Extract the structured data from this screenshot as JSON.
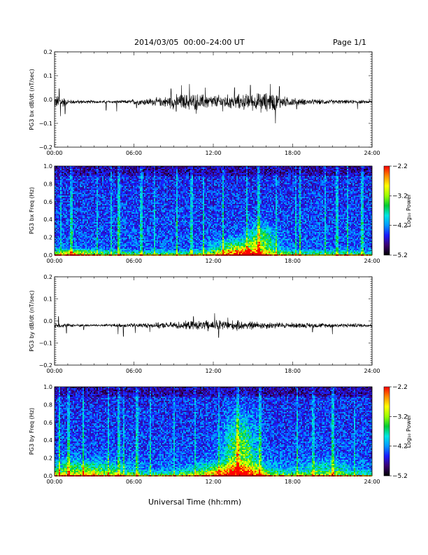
{
  "header": {
    "title": "2014/03/05  00:00–24:00 UT",
    "page": "Page 1/1"
  },
  "footer": {
    "xlabel": "Universal Time (hh:mm)"
  },
  "colorscale": {
    "colors": [
      "#000000",
      "#3b0070",
      "#1a1aff",
      "#0099ff",
      "#00e6e6",
      "#00cc33",
      "#99ff00",
      "#ffff00",
      "#ff8c00",
      "#ff0000"
    ]
  },
  "chart_data": [
    {
      "type": "line",
      "ylabel": "PG3 bx dB/dt (nT/sec)",
      "x_ticks": [
        "00:00",
        "06:00",
        "12:00",
        "18:00",
        "24:00"
      ],
      "xlim_hours": [
        0,
        24
      ],
      "y_ticks": [
        "0.2",
        "0.1",
        "0.0",
        "−0.1",
        "−0.2"
      ],
      "ylim": [
        -0.2,
        0.2
      ],
      "baseline": -0.01,
      "envelope": [
        {
          "x": 0,
          "amp": 0.025
        },
        {
          "x": 0.5,
          "amp": 0.03
        },
        {
          "x": 1,
          "amp": 0.01
        },
        {
          "x": 3,
          "amp": 0.006
        },
        {
          "x": 5.5,
          "amp": 0.007
        },
        {
          "x": 6,
          "amp": 0.012
        },
        {
          "x": 8,
          "amp": 0.018
        },
        {
          "x": 9,
          "amp": 0.03
        },
        {
          "x": 10.5,
          "amp": 0.035
        },
        {
          "x": 12,
          "amp": 0.028
        },
        {
          "x": 13.5,
          "amp": 0.03
        },
        {
          "x": 15,
          "amp": 0.035
        },
        {
          "x": 16.5,
          "amp": 0.04
        },
        {
          "x": 17.5,
          "amp": 0.02
        },
        {
          "x": 19,
          "amp": 0.012
        },
        {
          "x": 22,
          "amp": 0.008
        },
        {
          "x": 24,
          "amp": 0.007
        }
      ],
      "spikes": [
        {
          "x": 0.35,
          "y": 0.045
        },
        {
          "x": 0.45,
          "y": -0.07
        },
        {
          "x": 0.8,
          "y": -0.06
        },
        {
          "x": 3.9,
          "y": -0.045
        },
        {
          "x": 4.7,
          "y": -0.05
        },
        {
          "x": 6.2,
          "y": -0.035
        },
        {
          "x": 8.8,
          "y": 0.045
        },
        {
          "x": 9.2,
          "y": -0.05
        },
        {
          "x": 9.6,
          "y": 0.06
        },
        {
          "x": 10.2,
          "y": 0.065
        },
        {
          "x": 10.7,
          "y": -0.06
        },
        {
          "x": 11.4,
          "y": 0.05
        },
        {
          "x": 12.7,
          "y": -0.05
        },
        {
          "x": 13.6,
          "y": 0.05
        },
        {
          "x": 14.8,
          "y": 0.06
        },
        {
          "x": 15.6,
          "y": -0.055
        },
        {
          "x": 16.3,
          "y": 0.065
        },
        {
          "x": 16.7,
          "y": -0.1
        },
        {
          "x": 17.0,
          "y": 0.055
        },
        {
          "x": 18.3,
          "y": -0.04
        },
        {
          "x": 22.9,
          "y": -0.04
        }
      ]
    },
    {
      "type": "heatmap",
      "ylabel": "PG3 bx Freq (Hz)",
      "colorbar_label": "Log₁₀ Power",
      "colorbar_ticks": [
        "−2.2",
        "−3.2",
        "−4.2",
        "−5.2"
      ],
      "zlim": [
        -5.2,
        -2.2
      ],
      "x_ticks": [
        "00:00",
        "06:00",
        "12:00",
        "18:00",
        "24:00"
      ],
      "xlim_hours": [
        0,
        24
      ],
      "y_ticks": [
        "1.0",
        "0.8",
        "0.6",
        "0.4",
        "0.2",
        "0.0"
      ],
      "ylim": [
        0,
        1.0
      ],
      "hot_spots": [
        {
          "t": 14.2,
          "f": 0.03,
          "rt": 2.2,
          "rf": 0.12,
          "z": 1.6
        },
        {
          "t": 15.5,
          "f": 0.2,
          "rt": 1.0,
          "rf": 0.15,
          "z": 0.8
        },
        {
          "t": 1.5,
          "f": 0.03,
          "rt": 2.0,
          "rf": 0.05,
          "z": 0.7
        }
      ],
      "vertical_streaks": [
        0.4,
        1.2,
        3.2,
        4.2,
        4.8,
        6.5,
        7.5,
        9.2,
        10.3,
        11.2,
        12.7,
        14.5,
        15.4,
        16.7,
        18.2,
        18.5,
        20.4,
        21.3,
        22.1,
        23.2
      ]
    },
    {
      "type": "line",
      "ylabel": "PG3 by dB/dt (nT/sec)",
      "x_ticks": [
        "00:00",
        "06:00",
        "12:00",
        "18:00",
        "24:00"
      ],
      "xlim_hours": [
        0,
        24
      ],
      "y_ticks": [
        "0.2",
        "0.1",
        "0.0",
        "−0.1",
        "−0.2"
      ],
      "ylim": [
        -0.2,
        0.2
      ],
      "baseline": -0.02,
      "envelope": [
        {
          "x": 0,
          "amp": 0.012
        },
        {
          "x": 1,
          "amp": 0.008
        },
        {
          "x": 3,
          "amp": 0.005
        },
        {
          "x": 6,
          "amp": 0.01
        },
        {
          "x": 8,
          "amp": 0.012
        },
        {
          "x": 9.5,
          "amp": 0.018
        },
        {
          "x": 11,
          "amp": 0.02
        },
        {
          "x": 12.5,
          "amp": 0.025
        },
        {
          "x": 14,
          "amp": 0.02
        },
        {
          "x": 16,
          "amp": 0.016
        },
        {
          "x": 18,
          "amp": 0.012
        },
        {
          "x": 21,
          "amp": 0.01
        },
        {
          "x": 24,
          "amp": 0.008
        }
      ],
      "spikes": [
        {
          "x": 0.3,
          "y": 0.02
        },
        {
          "x": 0.9,
          "y": -0.055
        },
        {
          "x": 2.2,
          "y": -0.04
        },
        {
          "x": 4.8,
          "y": -0.06
        },
        {
          "x": 5.2,
          "y": -0.07
        },
        {
          "x": 6.1,
          "y": -0.055
        },
        {
          "x": 7.2,
          "y": -0.05
        },
        {
          "x": 7.9,
          "y": -0.035
        },
        {
          "x": 10.5,
          "y": 0.02
        },
        {
          "x": 11.6,
          "y": -0.045
        },
        {
          "x": 12.1,
          "y": 0.035
        },
        {
          "x": 12.4,
          "y": -0.075
        },
        {
          "x": 13.1,
          "y": 0.015
        },
        {
          "x": 13.8,
          "y": -0.045
        },
        {
          "x": 14.9,
          "y": -0.04
        },
        {
          "x": 19.5,
          "y": -0.05
        },
        {
          "x": 21.0,
          "y": -0.06
        }
      ]
    },
    {
      "type": "heatmap",
      "ylabel": "PG3 by Freq (Hz)",
      "colorbar_label": "Log₁₀ Power",
      "colorbar_ticks": [
        "−2.2",
        "−3.2",
        "−4.2",
        "−5.2"
      ],
      "zlim": [
        -5.2,
        -2.2
      ],
      "x_ticks": [
        "00:00",
        "06:00",
        "12:00",
        "18:00",
        "24:00"
      ],
      "xlim_hours": [
        0,
        24
      ],
      "y_ticks": [
        "1.0",
        "0.8",
        "0.6",
        "0.4",
        "0.2",
        "0.0"
      ],
      "ylim": [
        0,
        1.0
      ],
      "hot_spots": [
        {
          "t": 14.0,
          "f": 0.25,
          "rt": 1.2,
          "rf": 0.4,
          "z": 1.1
        },
        {
          "t": 13.5,
          "f": 0.05,
          "rt": 3.0,
          "rf": 0.1,
          "z": 1.3
        },
        {
          "t": 2.0,
          "f": 0.06,
          "rt": 3.5,
          "rf": 0.12,
          "z": 0.9
        },
        {
          "t": 20.5,
          "f": 0.08,
          "rt": 2.0,
          "rf": 0.1,
          "z": 0.6
        }
      ],
      "vertical_streaks": [
        0.3,
        1.0,
        2.1,
        4.0,
        4.8,
        5.2,
        6.2,
        7.2,
        9.0,
        10.6,
        12.4,
        13.8,
        15.5,
        18.3,
        19.5,
        21.0,
        22.6
      ]
    }
  ]
}
